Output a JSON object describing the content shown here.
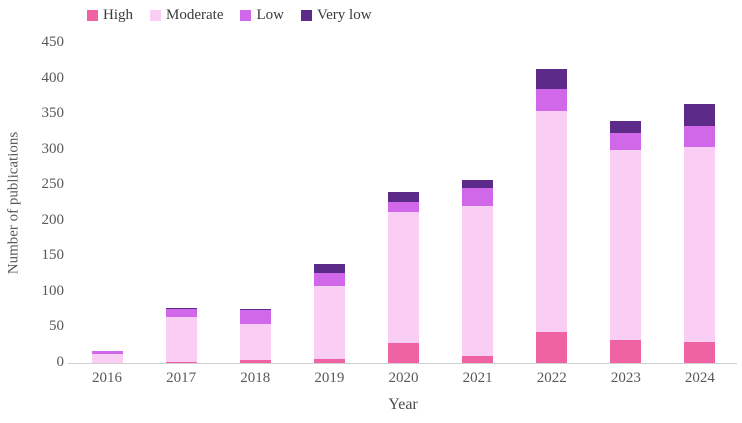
{
  "chart_data": {
    "type": "bar",
    "stacked": true,
    "title": "",
    "xlabel": "Year",
    "ylabel": "Number of publications",
    "categories": [
      "2016",
      "2017",
      "2018",
      "2019",
      "2020",
      "2021",
      "2022",
      "2023",
      "2024"
    ],
    "series": [
      {
        "name": "High",
        "color": "#ef63a2",
        "values": [
          0,
          1,
          4,
          6,
          28,
          10,
          44,
          32,
          30
        ]
      },
      {
        "name": "Moderate",
        "color": "#f9cdf4",
        "values": [
          13,
          64,
          51,
          103,
          185,
          211,
          311,
          267,
          274
        ]
      },
      {
        "name": "Low",
        "color": "#d168e9",
        "values": [
          4,
          11,
          19,
          17,
          13,
          25,
          31,
          24,
          30
        ]
      },
      {
        "name": "Very low",
        "color": "#5c2b8a",
        "values": [
          0,
          2,
          2,
          13,
          14,
          12,
          28,
          17,
          31
        ]
      }
    ],
    "totals": [
      17,
      78,
      76,
      139,
      240,
      258,
      414,
      340,
      365
    ],
    "ylim": [
      0,
      450
    ],
    "yticks": [
      0,
      50,
      100,
      150,
      200,
      250,
      300,
      350,
      400,
      450
    ],
    "grid": false,
    "legend_position": "top",
    "bar_borders": false
  },
  "y_axis": {
    "title": "Number of publications"
  },
  "x_axis": {
    "title": "Year"
  },
  "colors": {
    "background": "#ffffff",
    "axis_line": "#cfcfcf",
    "tick_text": "#595959",
    "legend_text": "#3b3b3b"
  }
}
